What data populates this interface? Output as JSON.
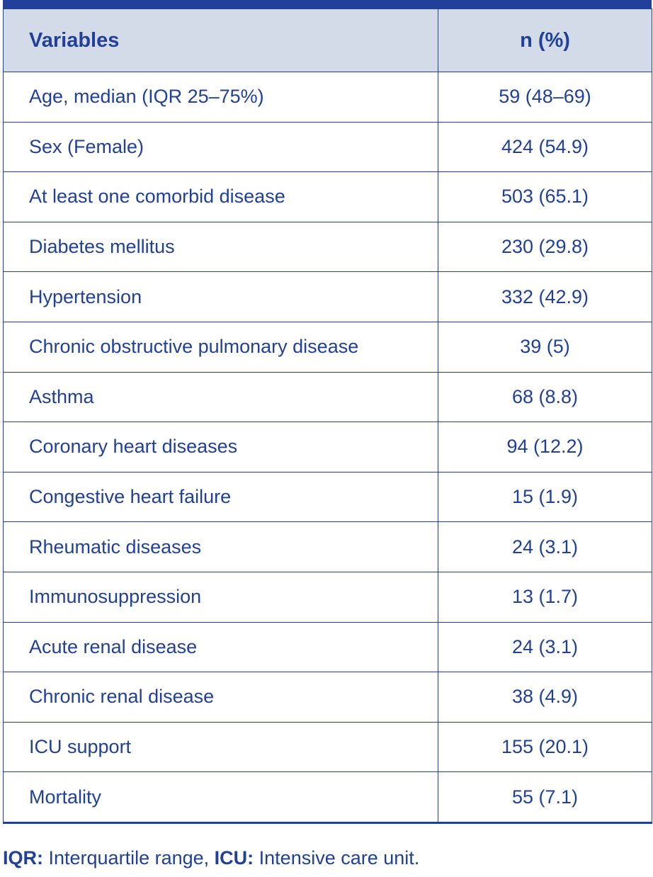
{
  "table": {
    "headers": [
      "Variables",
      "n (%)"
    ],
    "rows": [
      {
        "variable": "Age, median (IQR 25–75%)",
        "value": "59 (48–69)"
      },
      {
        "variable": "Sex (Female)",
        "value": "424 (54.9)"
      },
      {
        "variable": "At least one comorbid disease",
        "value": "503 (65.1)"
      },
      {
        "variable": "Diabetes mellitus",
        "value": "230 (29.8)"
      },
      {
        "variable": "Hypertension",
        "value": "332 (42.9)"
      },
      {
        "variable": "Chronic obstructive pulmonary disease",
        "value": "39 (5)"
      },
      {
        "variable": "Asthma",
        "value": "68 (8.8)"
      },
      {
        "variable": "Coronary heart diseases",
        "value": "94 (12.2)"
      },
      {
        "variable": "Congestive heart failure",
        "value": "15 (1.9)"
      },
      {
        "variable": "Rheumatic diseases",
        "value": "24 (3.1)"
      },
      {
        "variable": "Immunosuppression",
        "value": "13 (1.7)"
      },
      {
        "variable": "Acute renal disease",
        "value": "24 (3.1)"
      },
      {
        "variable": "Chronic renal disease",
        "value": "38 (4.9)"
      },
      {
        "variable": "ICU support",
        "value": "155 (20.1)"
      },
      {
        "variable": "Mortality",
        "value": "55 (7.1)"
      }
    ]
  },
  "footnote": {
    "abbr1": "IQR:",
    "def1": " Interquartile range, ",
    "abbr2": "ICU:",
    "def2": " Intensive care unit."
  },
  "colors": {
    "text": "#21409a",
    "header_bg": "#d3dbe8",
    "rule": "#21409a"
  }
}
